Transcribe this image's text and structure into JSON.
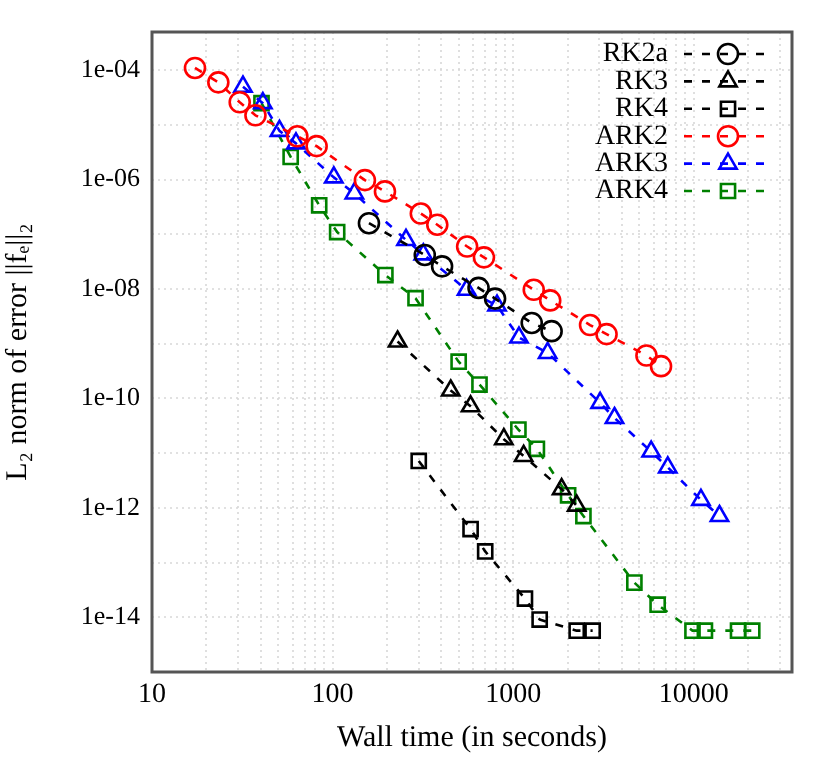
{
  "chart_data": {
    "type": "line",
    "xlabel": "Wall time (in seconds)",
    "ylabel": "L₂ norm of error ||fₑ||₂",
    "log": "xy",
    "grid": true,
    "legend": "top right",
    "line_style": "dashed",
    "xlim": [
      10,
      35000
    ],
    "ylim": [
      1e-15,
      0.0005
    ],
    "xticks": [
      10,
      {
        "value": 20,
        "label": null
      },
      {
        "value": 30,
        "label": null
      },
      {
        "value": 40,
        "label": null
      },
      {
        "value": 50,
        "label": null
      },
      {
        "value": 60,
        "label": null
      },
      {
        "value": 70,
        "label": null
      },
      {
        "value": 80,
        "label": null
      },
      {
        "value": 90,
        "label": null
      },
      100,
      {
        "value": 200,
        "label": null
      },
      {
        "value": 300,
        "label": null
      },
      {
        "value": 400,
        "label": null
      },
      {
        "value": 500,
        "label": null
      },
      {
        "value": 600,
        "label": null
      },
      {
        "value": 700,
        "label": null
      },
      {
        "value": 800,
        "label": null
      },
      {
        "value": 900,
        "label": null
      },
      1000,
      {
        "value": 2000,
        "label": null
      },
      {
        "value": 3000,
        "label": null
      },
      {
        "value": 4000,
        "label": null
      },
      {
        "value": 5000,
        "label": null
      },
      {
        "value": 6000,
        "label": null
      },
      {
        "value": 7000,
        "label": null
      },
      {
        "value": 8000,
        "label": null
      },
      {
        "value": 9000,
        "label": null
      },
      10000,
      {
        "value": 20000,
        "label": null
      },
      {
        "value": 30000,
        "label": null
      }
    ],
    "yticks": [
      {
        "value": 1e-15,
        "label": null
      },
      {
        "value": 1e-14,
        "label": "1e-14"
      },
      {
        "value": 1e-13,
        "label": null
      },
      {
        "value": 1e-12,
        "label": "1e-12"
      },
      {
        "value": 1e-11,
        "label": null
      },
      {
        "value": 1e-10,
        "label": "1e-10"
      },
      {
        "value": 1e-09,
        "label": null
      },
      {
        "value": 1e-08,
        "label": "1e-08"
      },
      {
        "value": 1e-07,
        "label": null
      },
      {
        "value": 1e-06,
        "label": "1e-06"
      },
      {
        "value": 1e-05,
        "label": null
      },
      {
        "value": 0.0001,
        "label": "1e-04"
      }
    ],
    "series": [
      {
        "name": "RK2a",
        "color": "#000000",
        "marker": "circle",
        "x": [
          159,
          324,
          404,
          643,
          794,
          1267,
          1633
        ],
        "values": [
          1.6e-07,
          4.2e-08,
          2.6e-08,
          1.05e-08,
          6.7e-09,
          2.4e-09,
          1.7e-09
        ]
      },
      {
        "name": "RK3",
        "color": "#000000",
        "marker": "triangle",
        "x": [
          229,
          451,
          581,
          888,
          1143,
          1855,
          2248
        ],
        "values": [
          1.1e-09,
          1.4e-10,
          7.2e-11,
          1.8e-11,
          8.9e-12,
          2.2e-12,
          1.1e-12
        ]
      },
      {
        "name": "RK4",
        "color": "#000000",
        "marker": "square",
        "x": [
          300,
          581,
          700,
          1162,
          1402,
          2248,
          2755
        ],
        "values": [
          7.2e-12,
          4.1e-13,
          1.6e-13,
          2.2e-14,
          9.1e-15,
          5.7e-15,
          5.7e-15
        ]
      },
      {
        "name": "ARK2",
        "color": "#ff0000",
        "marker": "circle",
        "x": [
          17.3,
          23.3,
          30.6,
          37.4,
          63.8,
          81.6,
          151,
          195,
          308,
          380,
          556,
          689,
          1300,
          1604,
          2665,
          3290,
          5470,
          6590
        ],
        "values": [
          0.00011,
          6e-05,
          2.6e-05,
          1.5e-05,
          6.2e-06,
          4.1e-06,
          9.8e-07,
          6.1e-07,
          2.4e-07,
          1.5e-07,
          6e-08,
          3.8e-08,
          9.7e-09,
          6.2e-09,
          2.2e-09,
          1.5e-09,
          6.1e-10,
          3.9e-10
        ]
      },
      {
        "name": "ARK3",
        "color": "#0000ff",
        "marker": "triangle",
        "x": [
          31.9,
          41.1,
          50.8,
          62.7,
          101.6,
          132,
          255,
          318,
          552,
          814,
          1077,
          1552,
          3030,
          3640,
          5810,
          7180,
          10960,
          13880
        ],
        "values": [
          5e-05,
          2.5e-05,
          7.8e-06,
          4.6e-06,
          1.1e-06,
          5.6e-07,
          7.9e-08,
          4.3e-08,
          9.7e-09,
          5e-09,
          1.3e-09,
          6.8e-10,
          8.3e-11,
          4.4e-11,
          1.07e-11,
          5.5e-12,
          1.4e-12,
          7.1e-13
        ]
      },
      {
        "name": "ARK4",
        "color": "#008000",
        "marker": "square",
        "x": [
          40.4,
          58.6,
          84.3,
          106,
          196,
          288,
          499,
          651,
          1069,
          1353,
          2015,
          2449,
          4690,
          6310,
          9840,
          11530,
          17590,
          21080
        ],
        "values": [
          2.5e-05,
          2.6e-06,
          3.4e-07,
          1.1e-07,
          1.8e-08,
          6.8e-09,
          4.7e-10,
          1.8e-10,
          2.7e-11,
          1.2e-11,
          1.7e-12,
          7.1e-13,
          4.3e-14,
          1.7e-14,
          5.7e-15,
          5.7e-15,
          5.7e-15,
          5.7e-15
        ]
      }
    ]
  }
}
